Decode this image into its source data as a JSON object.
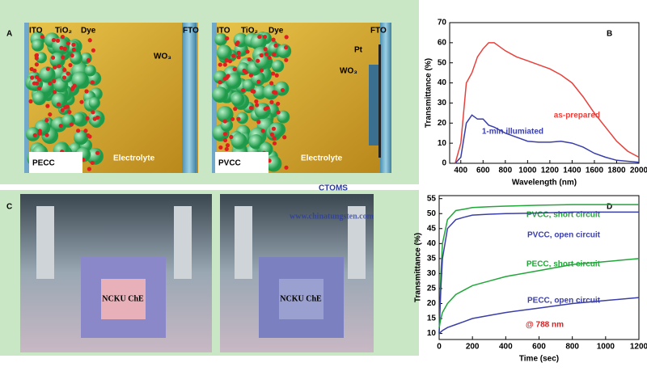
{
  "panel_a": {
    "label": "A",
    "pecc": {
      "ito": "ITO",
      "tio2": "TiO₂",
      "dye": "Dye",
      "fto": "FTO",
      "wo3": "WO₃",
      "name": "PECC",
      "electrolyte": "Electrolyte"
    },
    "pvcc": {
      "ito": "ITO",
      "tio2": "TiO₂",
      "dye": "Dye",
      "fto": "FTO",
      "pt": "Pt",
      "wo3": "WO₃",
      "name": "PVCC",
      "electrolyte": "Electrolyte"
    }
  },
  "panel_c": {
    "label": "C",
    "photo_1": "NCKU ChE",
    "photo_2": "NCKU ChE"
  },
  "watermark": {
    "url": "www.chinatungsten.com",
    "logo": "CTOMS"
  },
  "chart_data": [
    {
      "type": "line",
      "panel": "B",
      "x_label": "Wavelength (nm)",
      "y_label": "Transmittance (%)",
      "x": [
        350,
        400,
        450,
        500,
        550,
        600,
        650,
        700,
        750,
        800,
        900,
        1000,
        1100,
        1200,
        1300,
        1400,
        1500,
        1600,
        1700,
        1800,
        1900,
        2000
      ],
      "series": [
        {
          "name": "as-prepared",
          "color": "#e8413c",
          "values": [
            0,
            10,
            40,
            45,
            53,
            57,
            60,
            60,
            58,
            56,
            53,
            51,
            49,
            47,
            44,
            40,
            33,
            25,
            18,
            11,
            6,
            3
          ]
        },
        {
          "name": "1-min illumiated",
          "color": "#3a3ea8",
          "values": [
            0,
            3,
            20,
            24,
            22,
            22,
            19,
            18,
            16.5,
            15,
            13,
            11,
            10.5,
            10.5,
            11,
            10,
            8,
            5,
            3,
            1.5,
            1,
            0.5
          ]
        }
      ],
      "xlim": [
        300,
        2000
      ],
      "xticks": [
        400,
        600,
        800,
        1000,
        1200,
        1400,
        1600,
        1800,
        2000
      ],
      "ylim": [
        0,
        70
      ],
      "yticks": [
        0,
        10,
        20,
        30,
        40,
        50,
        60,
        70
      ]
    },
    {
      "type": "line",
      "panel": "D",
      "x_label": "Time (sec)",
      "y_label": "Transmittance (%)",
      "annotation": "@ 788 nm",
      "x": [
        0,
        10,
        20,
        50,
        100,
        150,
        200,
        300,
        400,
        600,
        800,
        1000,
        1200
      ],
      "series": [
        {
          "name": "PVCC, short circuit",
          "color": "#22a63a",
          "values": [
            10,
            30,
            40,
            48,
            51,
            51.5,
            52,
            52.3,
            52.5,
            52.8,
            53,
            53,
            53
          ]
        },
        {
          "name": "PVCC, open circuit",
          "color": "#3a3ea8",
          "values": [
            10,
            25,
            35,
            45,
            48,
            48.8,
            49.5,
            49.8,
            50,
            50.2,
            50.5,
            50.5,
            50.5
          ]
        },
        {
          "name": "PECC, short circuit",
          "color": "#22a63a",
          "values": [
            12,
            15,
            17,
            20,
            23,
            24.5,
            26,
            27.5,
            29,
            31,
            33,
            34,
            35
          ]
        },
        {
          "name": "PECC, open circuit",
          "color": "#3a3ea8",
          "values": [
            10,
            10.5,
            11,
            12,
            13,
            14,
            15,
            16,
            17,
            18.5,
            20,
            21,
            22
          ]
        }
      ],
      "xlim": [
        0,
        1200
      ],
      "xticks": [
        0,
        200,
        400,
        600,
        800,
        1000,
        1200
      ],
      "ylim": [
        8,
        56
      ],
      "yticks": [
        10,
        15,
        20,
        25,
        30,
        35,
        40,
        45,
        50,
        55
      ]
    }
  ]
}
